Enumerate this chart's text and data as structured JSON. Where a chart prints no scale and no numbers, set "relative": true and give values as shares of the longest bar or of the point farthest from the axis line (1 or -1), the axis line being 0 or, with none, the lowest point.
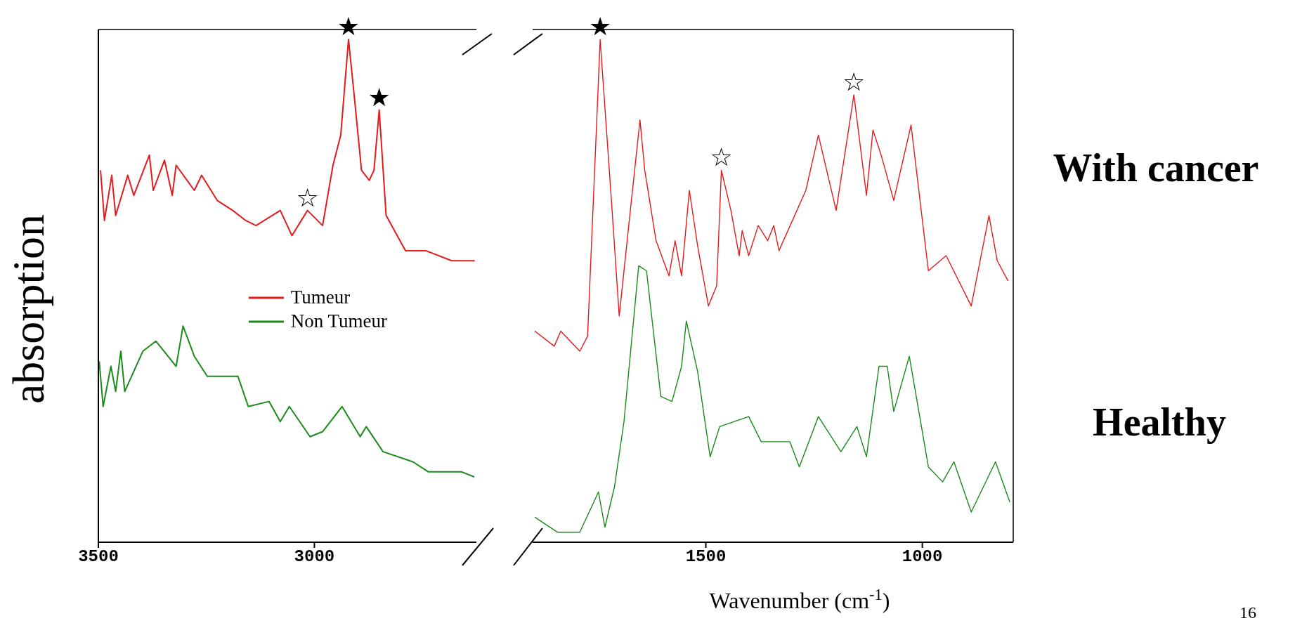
{
  "chart_data": [
    {
      "type": "line",
      "relative": true,
      "ylabel": "absorption",
      "xlim": [
        3500,
        2625
      ],
      "xticks": [
        3500,
        3000
      ],
      "tick_labels": "x",
      "legend": "center",
      "series": [
        {
          "name": "Tumeur",
          "color": "#e41a1c",
          "x": [
            3495,
            3486,
            3469,
            3460,
            3432,
            3418,
            3382,
            3373,
            3347,
            3329,
            3320,
            3278,
            3261,
            3225,
            3189,
            3159,
            3135,
            3079,
            3052,
            3016,
            2981,
            2957,
            2939,
            2921,
            2908,
            2891,
            2873,
            2862,
            2850,
            2834,
            2789,
            2742,
            2682,
            2629
          ],
          "values": [
            0.74,
            0.64,
            0.73,
            0.65,
            0.73,
            0.69,
            0.77,
            0.7,
            0.76,
            0.69,
            0.75,
            0.7,
            0.73,
            0.68,
            0.66,
            0.64,
            0.63,
            0.66,
            0.61,
            0.66,
            0.63,
            0.75,
            0.81,
            1,
            0.89,
            0.74,
            0.72,
            0.74,
            0.86,
            0.65,
            0.58,
            0.58,
            0.56,
            0.56
          ]
        },
        {
          "name": "Non Tumeur",
          "color": "#1a8a1a",
          "x": [
            3498,
            3489,
            3471,
            3460,
            3448,
            3439,
            3397,
            3367,
            3320,
            3304,
            3278,
            3248,
            3177,
            3153,
            3105,
            3079,
            3058,
            3010,
            2981,
            2936,
            2894,
            2880,
            2841,
            2772,
            2736,
            2659,
            2630
          ],
          "values": [
            0.36,
            0.27,
            0.35,
            0.3,
            0.38,
            0.3,
            0.38,
            0.4,
            0.35,
            0.43,
            0.37,
            0.33,
            0.33,
            0.27,
            0.28,
            0.24,
            0.27,
            0.21,
            0.22,
            0.27,
            0.21,
            0.23,
            0.18,
            0.16,
            0.14,
            0.14,
            0.13
          ]
        }
      ],
      "annotations": [
        {
          "text": "★",
          "x": 2921,
          "y": 1
        },
        {
          "text": "★",
          "x": 2850,
          "y": 0.86
        },
        {
          "text": "☆",
          "x": 3016,
          "y": 0.66
        }
      ]
    },
    {
      "type": "line",
      "relative": true,
      "xlabel": "Wavenumber (cm$^{-1}$)",
      "xlim": [
        1900,
        790
      ],
      "xticks": [
        1500,
        1000
      ],
      "tick_labels": "x",
      "series": [
        {
          "color": "#e41a1c",
          "x": [
            1895,
            1850,
            1835,
            1791,
            1773,
            1744,
            1718,
            1700,
            1678,
            1652,
            1641,
            1615,
            1585,
            1571,
            1556,
            1538,
            1519,
            1494,
            1475,
            1464,
            1442,
            1423,
            1416,
            1401,
            1379,
            1357,
            1343,
            1331,
            1269,
            1240,
            1199,
            1158,
            1129,
            1114,
            1095,
            1066,
            1026,
            986,
            945,
            887,
            846,
            827,
            802
          ],
          "values": [
            0.42,
            0.39,
            0.42,
            0.38,
            0.41,
            1,
            0.68,
            0.45,
            0.63,
            0.84,
            0.74,
            0.6,
            0.53,
            0.6,
            0.53,
            0.7,
            0.59,
            0.47,
            0.51,
            0.74,
            0.66,
            0.57,
            0.62,
            0.57,
            0.63,
            0.6,
            0.63,
            0.58,
            0.7,
            0.81,
            0.66,
            0.89,
            0.69,
            0.82,
            0.77,
            0.68,
            0.83,
            0.54,
            0.57,
            0.47,
            0.65,
            0.56,
            0.52
          ]
        },
        {
          "color": "#1a8a1a",
          "x": [
            1895,
            1843,
            1791,
            1748,
            1733,
            1711,
            1689,
            1655,
            1637,
            1604,
            1578,
            1556,
            1545,
            1519,
            1490,
            1468,
            1401,
            1372,
            1306,
            1284,
            1240,
            1188,
            1151,
            1129,
            1100,
            1081,
            1066,
            1030,
            986,
            953,
            927,
            887,
            831,
            798
          ],
          "values": [
            0.05,
            0.02,
            0.02,
            0.1,
            0.03,
            0.11,
            0.24,
            0.55,
            0.54,
            0.29,
            0.28,
            0.35,
            0.44,
            0.34,
            0.17,
            0.23,
            0.25,
            0.2,
            0.2,
            0.15,
            0.25,
            0.18,
            0.23,
            0.17,
            0.35,
            0.35,
            0.26,
            0.37,
            0.15,
            0.12,
            0.16,
            0.06,
            0.16,
            0.08
          ]
        }
      ],
      "annotations": [
        "With cancer",
        "Healthy",
        "16",
        {
          "text": "★",
          "x": 1744,
          "y": 1
        },
        {
          "text": "☆",
          "x": 1464,
          "y": 0.74
        },
        {
          "text": "☆",
          "x": 1158,
          "y": 0.89
        }
      ]
    }
  ]
}
